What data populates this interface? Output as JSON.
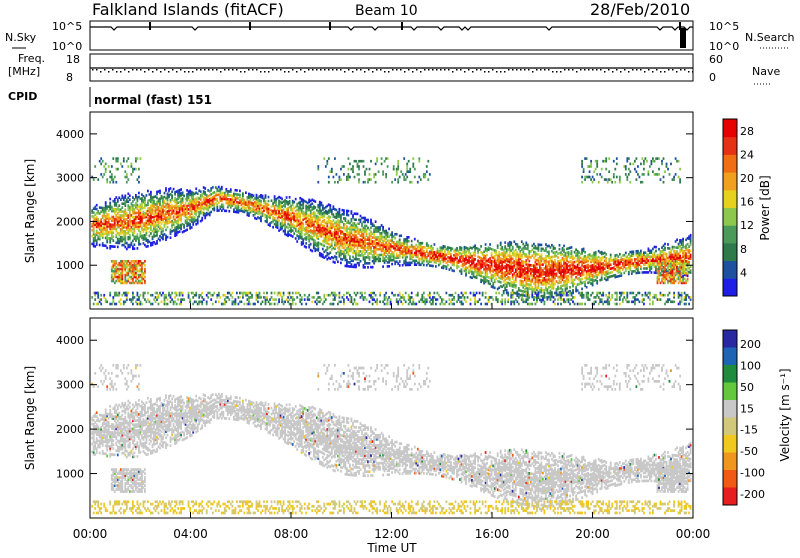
{
  "header": {
    "station": "Falkland Islands (fitACF)",
    "beam": "Beam 10",
    "date": "28/Feb/2010"
  },
  "top_panels": {
    "nsky_label": "N.Sky",
    "nsky_ticks": [
      "10^5",
      "10^0"
    ],
    "nsearch_label": "N.Search",
    "nsearch_ticks": [
      "10^5",
      "10^0"
    ],
    "freq_label": "Freq.",
    "freq_unit": "[MHz]",
    "freq_ticks": [
      "18",
      "8"
    ],
    "nave_label": "Nave",
    "nave_ticks": [
      "60",
      "0"
    ],
    "cpid_label": "CPID",
    "cpid_value": "normal (fast) 151"
  },
  "colors": {
    "power_scale": [
      "#1e1ee6",
      "#1e50a0",
      "#2d7a4a",
      "#4a9a5a",
      "#8cc84b",
      "#e6d21e",
      "#f0a01e",
      "#f06e14",
      "#e63214",
      "#e60000"
    ],
    "velocity_scale": [
      "#2828a0",
      "#1e64b4",
      "#1e8c3c",
      "#64c83c",
      "#c8c8c8",
      "#d2c87a",
      "#f0c81e",
      "#f0961e",
      "#f05a14",
      "#e61e1e"
    ],
    "scatter_gray": "#c8c8c8"
  },
  "chart_data": [
    {
      "type": "heatmap",
      "title": "Power",
      "xlabel": "",
      "ylabel": "Slant Range [km]",
      "x_ticks": [
        "00:00",
        "04:00",
        "08:00",
        "12:00",
        "16:00",
        "20:00",
        "00:00"
      ],
      "xlim_hours": [
        0,
        24
      ],
      "y_ticks": [
        1000,
        2000,
        3000,
        4000
      ],
      "ylim": [
        0,
        4500
      ],
      "colorbar": {
        "label": "Power [dB]",
        "ticks": [
          4,
          8,
          12,
          16,
          20,
          24,
          28
        ],
        "range": [
          0,
          30
        ]
      },
      "main_band": {
        "hours": [
          0,
          2,
          4,
          5,
          6,
          8,
          10,
          12,
          14,
          16,
          18,
          20,
          22,
          23.5
        ],
        "center_km": [
          1900,
          2050,
          2300,
          2550,
          2450,
          2100,
          1650,
          1400,
          1200,
          1000,
          850,
          950,
          1100,
          1200
        ]
      }
    },
    {
      "type": "heatmap",
      "title": "Velocity",
      "xlabel": "Time UT",
      "ylabel": "Slant Range [km]",
      "x_ticks": [
        "00:00",
        "04:00",
        "08:00",
        "12:00",
        "16:00",
        "20:00",
        "00:00"
      ],
      "xlim_hours": [
        0,
        24
      ],
      "y_ticks": [
        1000,
        2000,
        3000,
        4000
      ],
      "ylim": [
        0,
        4500
      ],
      "colorbar": {
        "label": "Velocity [m s⁻¹]",
        "ticks": [
          "200",
          "100",
          "50",
          "15",
          "-15",
          "-50",
          "-100",
          "-200"
        ],
        "range": [
          -250,
          250
        ]
      }
    }
  ]
}
